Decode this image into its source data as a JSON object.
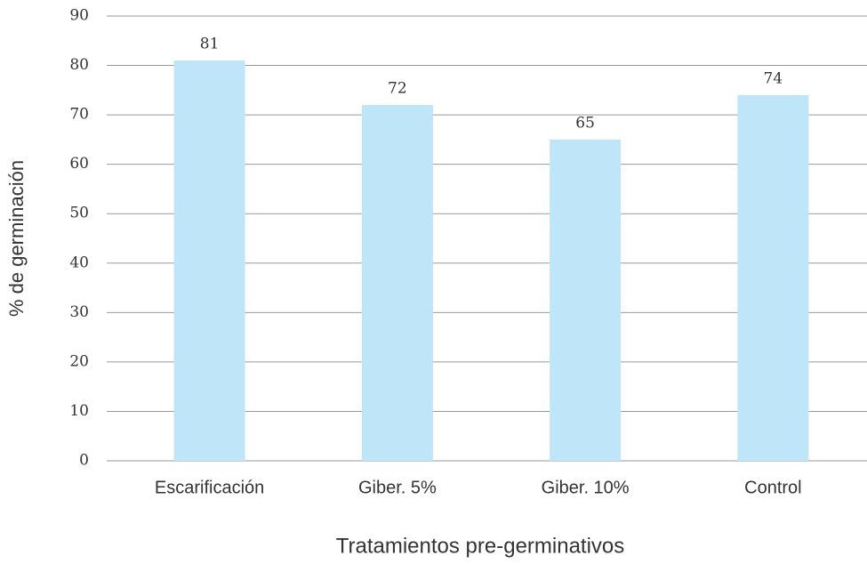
{
  "chart_data": {
    "type": "bar",
    "x_label": "Tratamientos pre-germinativos",
    "y_label": "% de germinación",
    "categories": [
      "Escarificación",
      "Giber. 5%",
      "Giber. 10%",
      "Control"
    ],
    "values": [
      81,
      72,
      65,
      74
    ],
    "color": "#bee5f8",
    "ylim": [
      0,
      90
    ],
    "yticks": [
      0,
      10,
      20,
      30,
      40,
      50,
      60,
      70,
      80,
      90
    ],
    "grid": true
  }
}
